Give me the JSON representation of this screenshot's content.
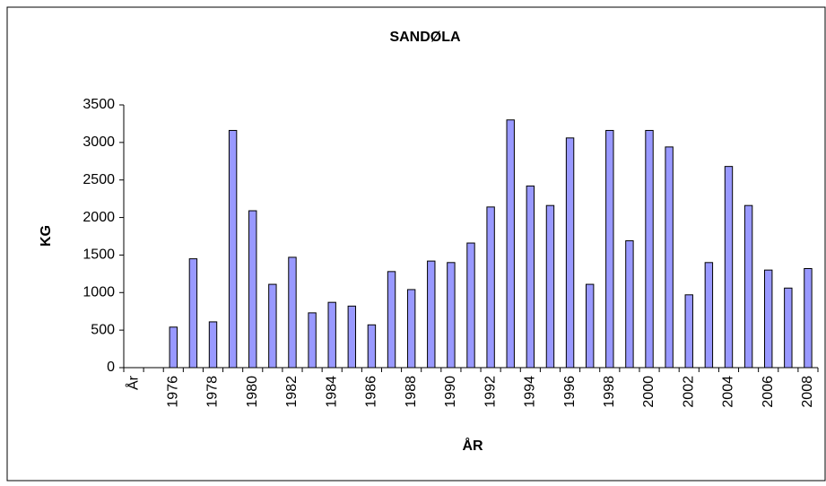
{
  "chart_data": {
    "type": "bar",
    "title": "SANDØLA",
    "x_label": "ÅR",
    "y_label": "KG",
    "categories": [
      "År",
      null,
      "1976",
      null,
      "1978",
      null,
      "1980",
      null,
      "1982",
      null,
      "1984",
      null,
      "1986",
      null,
      "1988",
      null,
      "1990",
      null,
      "1992",
      null,
      "1994",
      null,
      "1996",
      null,
      "1998",
      null,
      "2000",
      null,
      "2002",
      null,
      "2004",
      null,
      "2006",
      null,
      "2008"
    ],
    "values": [
      null,
      null,
      540,
      1450,
      610,
      3160,
      2090,
      1110,
      1470,
      730,
      870,
      820,
      570,
      1280,
      1040,
      1420,
      1400,
      1660,
      2140,
      3300,
      2420,
      2160,
      3060,
      1110,
      3160,
      1690,
      3160,
      2940,
      970,
      1400,
      2680,
      2160,
      1300,
      1060,
      1320
    ],
    "color": "#9999ff",
    "ylim": [
      0,
      3500
    ],
    "yticks": [
      0,
      500,
      1000,
      1500,
      2000,
      2500,
      3000,
      3500
    ],
    "grid": false
  }
}
